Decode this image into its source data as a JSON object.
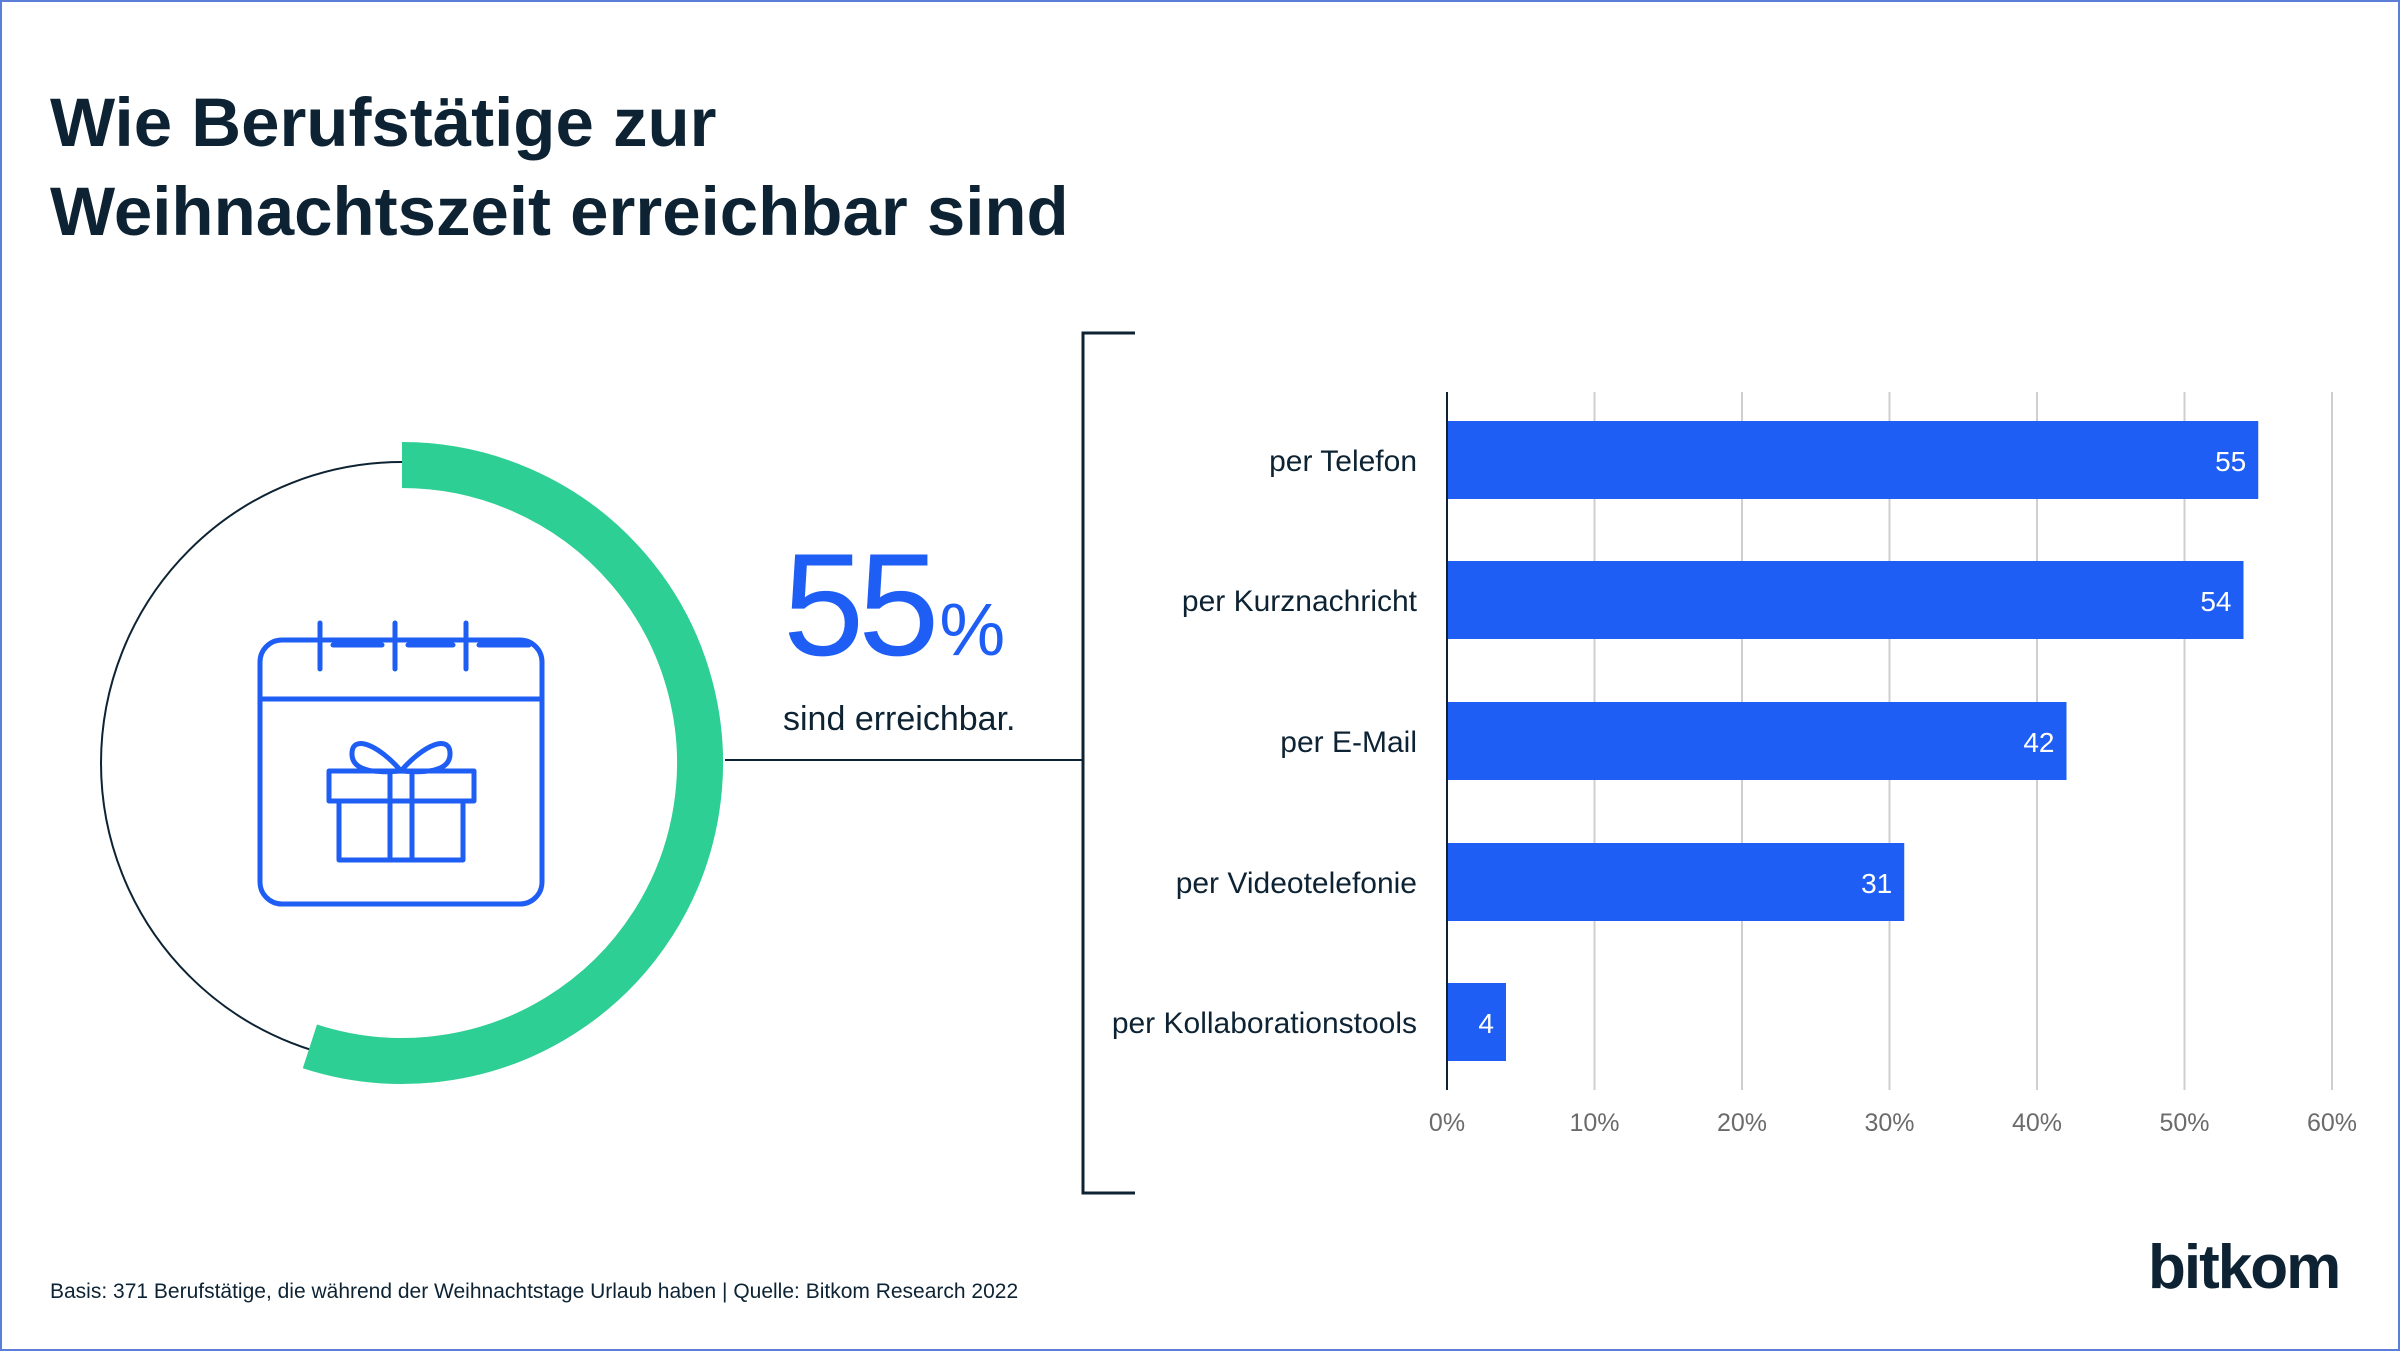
{
  "title_lines": [
    "Wie Berufstätige zur",
    "Weihnachtszeit erreichbar sind"
  ],
  "highlight": {
    "value": "55",
    "unit": "%",
    "fraction": 0.55,
    "label": "sind erreichbar.",
    "icon": "calendar-gift-icon"
  },
  "chart_data": {
    "type": "bar",
    "orientation": "horizontal",
    "categories": [
      "per Telefon",
      "per Kurznachricht",
      "per E-Mail",
      "per Videotelefonie",
      "per Kollaborationstools"
    ],
    "values": [
      55,
      54,
      42,
      31,
      4
    ],
    "xlim": [
      0,
      60
    ],
    "xticks": [
      "0%",
      "10%",
      "20%",
      "30%",
      "40%",
      "50%",
      "60%"
    ],
    "grid": true,
    "value_labels": true
  },
  "footer_note": "Basis: 371 Berufstätige, die während der Weihnachtstage Urlaub haben | Quelle: Bitkom Research 2022",
  "brand": "bitkom",
  "colors": {
    "accent_blue": "#1f5ef5",
    "ring_green": "#2ecf94",
    "dark_text": "#0d2333",
    "grid": "#cfcfcf"
  }
}
